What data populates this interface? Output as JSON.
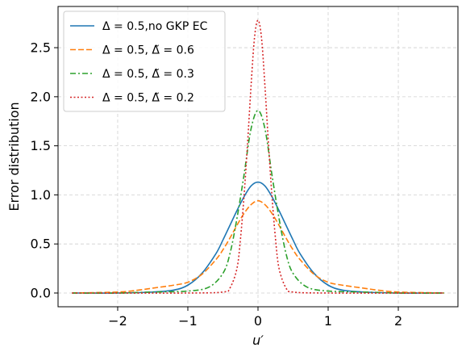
{
  "chart_data": {
    "type": "line",
    "title": "",
    "xlabel": "u′",
    "ylabel": "Error distribution",
    "xlim": [
      -2.85,
      2.85
    ],
    "ylim": [
      -0.14,
      2.92
    ],
    "xticks": [
      -2,
      -1,
      0,
      1,
      2
    ],
    "xtick_labels": [
      "−2",
      "−1",
      "0",
      "1",
      "2"
    ],
    "yticks": [
      0.0,
      0.5,
      1.0,
      1.5,
      2.0,
      2.5
    ],
    "ytick_labels": [
      "0.0",
      "0.5",
      "1.0",
      "1.5",
      "2.0",
      "2.5"
    ],
    "grid": true,
    "legend_position": "top-left",
    "series": [
      {
        "name": "Δ = 0.5,no GKP EC",
        "color": "#1f77b4",
        "dash": "solid",
        "x": [
          -2.65,
          -2.0,
          -1.5,
          -1.2,
          -1.0,
          -0.8,
          -0.6,
          -0.5,
          -0.4,
          -0.3,
          -0.2,
          -0.1,
          0.0,
          0.1,
          0.2,
          0.3,
          0.4,
          0.5,
          0.6,
          0.8,
          1.0,
          1.2,
          1.5,
          2.0,
          2.65
        ],
        "y": [
          0.0,
          0.0,
          0.01,
          0.03,
          0.08,
          0.2,
          0.4,
          0.54,
          0.69,
          0.84,
          0.98,
          1.09,
          1.13,
          1.09,
          0.98,
          0.84,
          0.69,
          0.54,
          0.4,
          0.2,
          0.08,
          0.03,
          0.01,
          0.0,
          0.0
        ]
      },
      {
        "name": "Δ = 0.5, Δ̃ = 0.6",
        "color": "#ff7f0e",
        "dash": "dashed",
        "x": [
          -2.65,
          -2.0,
          -1.7,
          -1.5,
          -1.2,
          -1.0,
          -0.8,
          -0.6,
          -0.5,
          -0.4,
          -0.3,
          -0.2,
          -0.1,
          0.0,
          0.1,
          0.2,
          0.3,
          0.4,
          0.5,
          0.6,
          0.8,
          1.0,
          1.2,
          1.5,
          1.7,
          2.0,
          2.65
        ],
        "y": [
          0.0,
          0.01,
          0.03,
          0.05,
          0.08,
          0.11,
          0.19,
          0.34,
          0.44,
          0.56,
          0.69,
          0.81,
          0.9,
          0.94,
          0.9,
          0.81,
          0.69,
          0.56,
          0.44,
          0.34,
          0.19,
          0.11,
          0.08,
          0.05,
          0.03,
          0.01,
          0.0
        ]
      },
      {
        "name": "Δ = 0.5, Δ̃ = 0.3",
        "color": "#2ca02c",
        "dash": "dashdot",
        "x": [
          -2.65,
          -2.0,
          -1.5,
          -1.0,
          -0.7,
          -0.5,
          -0.4,
          -0.3,
          -0.2,
          -0.1,
          0.0,
          0.1,
          0.2,
          0.3,
          0.4,
          0.5,
          0.7,
          1.0,
          1.5,
          2.0,
          2.65
        ],
        "y": [
          0.0,
          0.0,
          0.01,
          0.02,
          0.06,
          0.2,
          0.4,
          0.76,
          1.2,
          1.67,
          1.86,
          1.67,
          1.2,
          0.76,
          0.4,
          0.2,
          0.06,
          0.02,
          0.01,
          0.0,
          0.0
        ]
      },
      {
        "name": "Δ = 0.5, Δ̃ = 0.2",
        "color": "#d62728",
        "dash": "dotted",
        "x": [
          -2.65,
          -1.0,
          -0.5,
          -0.4,
          -0.3,
          -0.25,
          -0.2,
          -0.15,
          -0.1,
          -0.05,
          0.0,
          0.05,
          0.1,
          0.15,
          0.2,
          0.25,
          0.3,
          0.4,
          0.5,
          1.0,
          2.65
        ],
        "y": [
          0.0,
          0.0,
          0.01,
          0.05,
          0.25,
          0.55,
          0.98,
          1.51,
          2.1,
          2.6,
          2.78,
          2.6,
          2.1,
          1.51,
          0.98,
          0.55,
          0.25,
          0.05,
          0.01,
          0.0,
          0.0
        ]
      }
    ]
  }
}
